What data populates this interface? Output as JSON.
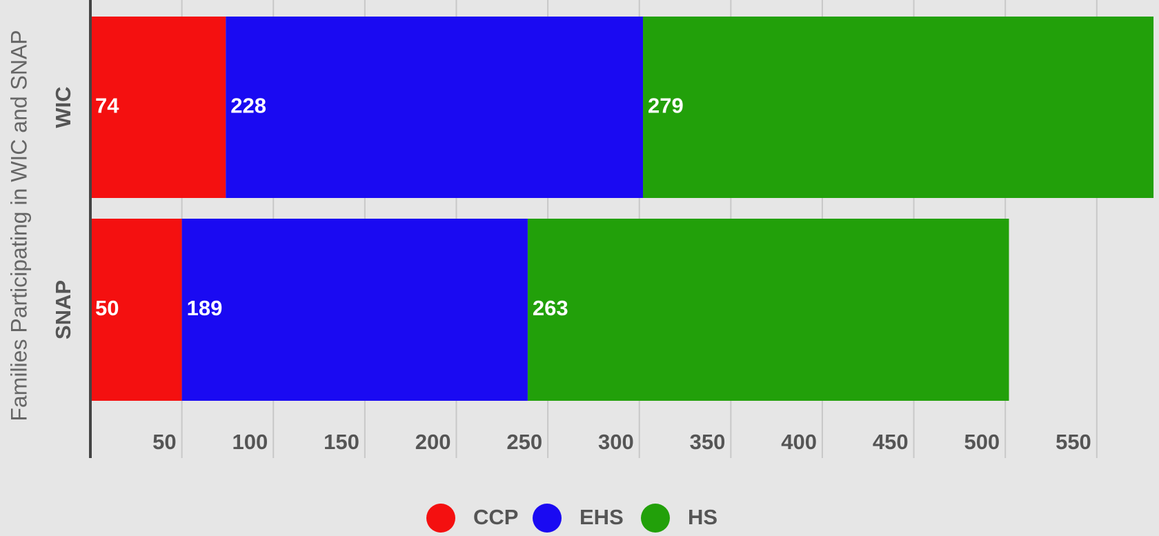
{
  "chart_data": {
    "type": "stacked-barh",
    "y_label": "Families Participating in WIC and SNAP",
    "categories": [
      "WIC",
      "SNAP"
    ],
    "series": [
      {
        "name": "CCP",
        "color": "#f41010",
        "values": [
          74,
          50
        ]
      },
      {
        "name": "EHS",
        "color": "#1a0af2",
        "values": [
          228,
          189
        ]
      },
      {
        "name": "HS",
        "color": "#22a00a",
        "values": [
          279,
          263
        ]
      }
    ],
    "xlim": [
      0,
      584
    ],
    "xticks": [
      50,
      100,
      150,
      200,
      250,
      300,
      350,
      400,
      450,
      500,
      550
    ],
    "grid": true
  }
}
